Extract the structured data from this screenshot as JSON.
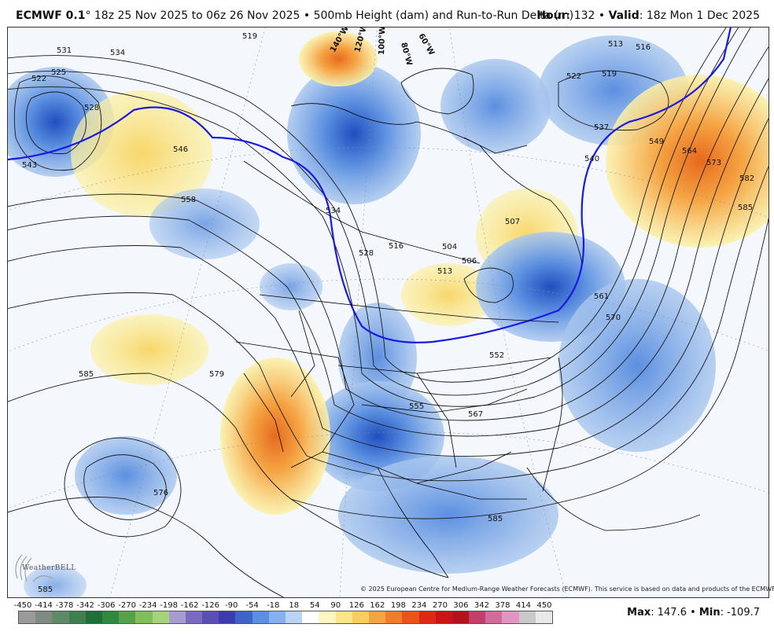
{
  "header": {
    "model": "ECMWF 0.1",
    "degree": "°",
    "run_range": " 18z 25 Nov 2025 to 06z 26 Nov 2025 • 500mb Height (dam) and Run-to-Run Delta (m)",
    "hour_label": "Hour",
    "hour_value": ": 132 • ",
    "valid_label": "Valid",
    "valid_value": ": 18z Mon 1 Dec 2025"
  },
  "map": {
    "height_contour_labels": [
      "531",
      "534",
      "519",
      "522",
      "525",
      "528",
      "543",
      "546",
      "558",
      "585",
      "579",
      "576",
      "507",
      "504",
      "506",
      "513",
      "516",
      "528",
      "534",
      "537",
      "540",
      "549",
      "564",
      "573",
      "582",
      "585",
      "561",
      "570",
      "552",
      "555",
      "567",
      "585",
      "516",
      "519",
      "513",
      "522",
      "585"
    ],
    "meridian_labels": [
      "140°W",
      "120°W",
      "100°W",
      "80°W",
      "60°W"
    ],
    "colors": {
      "background": "#f4f7fb",
      "blue_light": "#a9c7ee",
      "blue_mid": "#5b8fe0",
      "blue_dark": "#2a5fc9",
      "yellow_light": "#fbf1a7",
      "orange": "#f5a443",
      "orange_dark": "#e66a1e",
      "contour": "#1a1a1a",
      "highlight_contour": "#1a1ae0",
      "borders": "#000000"
    }
  },
  "logo": {
    "text": "WeatherBELL"
  },
  "copyright": "© 2025 European Centre for Medium-Range Weather Forecasts (ECMWF). This service is based on data and products of the ECMWF.",
  "colorbar": {
    "ticks": [
      "-450",
      "-414",
      "-378",
      "-342",
      "-306",
      "-270",
      "-234",
      "-198",
      "-162",
      "-126",
      "-90",
      "-54",
      "-18",
      "18",
      "54",
      "90",
      "126",
      "162",
      "198",
      "234",
      "270",
      "306",
      "342",
      "378",
      "414",
      "450"
    ],
    "colors": [
      "#9a9a9a",
      "#7f8a80",
      "#5f8a66",
      "#3f7f4f",
      "#1f6f3a",
      "#2d8a3e",
      "#55a24a",
      "#7fbf5a",
      "#a6d37a",
      "#a99bd0",
      "#7a6bc0",
      "#5a4fb5",
      "#3c3cb0",
      "#3f63c8",
      "#5b8fe0",
      "#86b1ee",
      "#b9d3f5",
      "#ffffff",
      "#fff6c0",
      "#fbe58a",
      "#f8cf5c",
      "#f5a443",
      "#f07d2c",
      "#e85518",
      "#dc2b14",
      "#c81515",
      "#b0151f",
      "#c0406a",
      "#d06b9a",
      "#e095c3",
      "#c9c9c9",
      "#e8e8e8"
    ]
  },
  "stats": {
    "max_label": "Max",
    "max_value": ": 147.6 • ",
    "min_label": "Min",
    "min_value": ": -109.7"
  }
}
